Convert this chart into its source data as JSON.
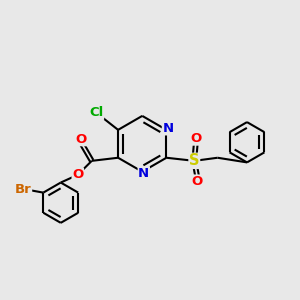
{
  "bg_color": "#e8e8e8",
  "atom_colors": {
    "C": "#000000",
    "N": "#0000dd",
    "O": "#ff0000",
    "S": "#cccc00",
    "Cl": "#00aa00",
    "Br": "#cc6600"
  },
  "bond_color": "#000000",
  "bond_lw": 1.5,
  "font_size": 9.5
}
